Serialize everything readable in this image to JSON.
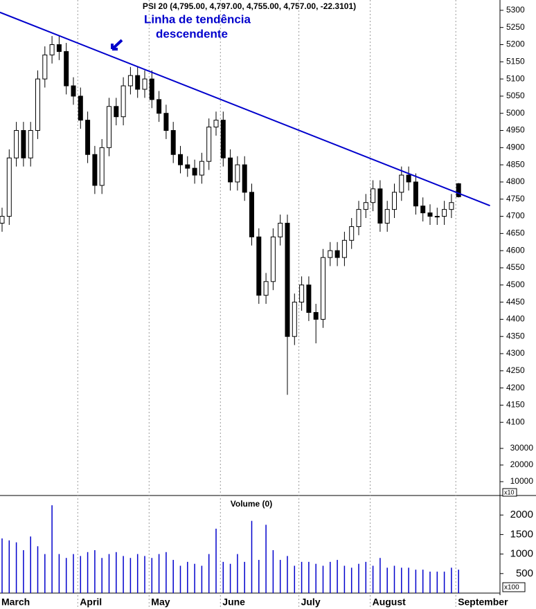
{
  "chart_data": [
    {
      "type": "candlestick",
      "title": "PSI 20 (4,795.00, 4,797.00, 4,755.00, 4,757.00, -22.3101)",
      "annotation": [
        "Linha de tendência",
        "descendente"
      ],
      "open": [
        4680,
        4700,
        4870,
        4950,
        4870,
        4950,
        5100,
        5170,
        5200,
        5180,
        5080,
        5050,
        4980,
        4880,
        4790,
        4900,
        5020,
        4990,
        5080,
        5110,
        5070,
        5100,
        5040,
        5000,
        4950,
        4880,
        4850,
        4840,
        4820,
        4860,
        4960,
        4980,
        4870,
        4800,
        4850,
        4770,
        4640,
        4470,
        4510,
        4640,
        4680,
        4350,
        4450,
        4500,
        4420,
        4400,
        4580,
        4600,
        4580,
        4630,
        4670,
        4720,
        4740,
        4780,
        4680,
        4720,
        4770,
        4820,
        4800,
        4730,
        4710,
        4700,
        4700,
        4720,
        4795
      ],
      "high": [
        4725,
        4895,
        4975,
        4975,
        4975,
        5125,
        5195,
        5225,
        5225,
        5205,
        5105,
        5075,
        5005,
        4905,
        4925,
        5045,
        5045,
        5105,
        5135,
        5135,
        5125,
        5125,
        5065,
        5025,
        4975,
        4905,
        4875,
        4865,
        4885,
        4985,
        5005,
        5005,
        4895,
        4875,
        4875,
        4795,
        4665,
        4535,
        4665,
        4705,
        4705,
        4475,
        4525,
        4525,
        4445,
        4605,
        4625,
        4625,
        4655,
        4695,
        4745,
        4765,
        4805,
        4805,
        4745,
        4795,
        4845,
        4845,
        4825,
        4755,
        4735,
        4725,
        4745,
        4765,
        4797
      ],
      "low": [
        4655,
        4675,
        4845,
        4845,
        4845,
        4925,
        5075,
        5145,
        5155,
        5055,
        5025,
        4955,
        4855,
        4765,
        4765,
        4875,
        4965,
        4965,
        5055,
        5045,
        5045,
        5015,
        4975,
        4925,
        4855,
        4825,
        4815,
        4795,
        4795,
        4835,
        4935,
        4845,
        4775,
        4775,
        4745,
        4615,
        4445,
        4445,
        4485,
        4615,
        4180,
        4325,
        4425,
        4395,
        4330,
        4375,
        4555,
        4555,
        4555,
        4605,
        4645,
        4695,
        4715,
        4655,
        4655,
        4695,
        4745,
        4775,
        4705,
        4685,
        4675,
        4675,
        4675,
        4695,
        4755
      ],
      "close": [
        4700,
        4870,
        4950,
        4870,
        4950,
        5100,
        5170,
        5200,
        5180,
        5080,
        5050,
        4980,
        4880,
        4790,
        4900,
        5020,
        4990,
        5080,
        5110,
        5070,
        5100,
        5040,
        5000,
        4950,
        4880,
        4850,
        4840,
        4820,
        4860,
        4960,
        4980,
        4870,
        4800,
        4850,
        4770,
        4640,
        4470,
        4510,
        4640,
        4680,
        4350,
        4450,
        4500,
        4420,
        4400,
        4580,
        4600,
        4580,
        4630,
        4670,
        4720,
        4740,
        4780,
        4680,
        4720,
        4770,
        4820,
        4800,
        4730,
        4710,
        4700,
        4700,
        4720,
        4740,
        4757
      ],
      "up_color": "#ffffff",
      "down_color": "#000000",
      "ylim": [
        4040,
        5330
      ],
      "yticks": [
        4100,
        4150,
        4200,
        4250,
        4300,
        4350,
        4400,
        4450,
        4500,
        4550,
        4600,
        4650,
        4700,
        4750,
        4800,
        4850,
        4900,
        4950,
        5000,
        5050,
        5100,
        5150,
        5200,
        5250,
        5300
      ],
      "y2lim": [
        2500,
        33300
      ],
      "y2ticks": [
        10000,
        20000,
        30000
      ],
      "y2_label": "x10",
      "trendline": {
        "x": [
          -0.3,
          68.4
        ],
        "y": [
          5294,
          4731
        ],
        "color": "#0000cc"
      }
    },
    {
      "type": "bar",
      "title": "Volume (0)",
      "categories": [
        "March",
        null,
        null,
        null,
        null,
        null,
        null,
        null,
        null,
        null,
        null,
        "April",
        null,
        null,
        null,
        null,
        null,
        null,
        null,
        null,
        null,
        "May",
        null,
        null,
        null,
        null,
        null,
        null,
        null,
        null,
        null,
        "June",
        null,
        null,
        null,
        null,
        null,
        null,
        null,
        null,
        null,
        null,
        "July",
        null,
        null,
        null,
        null,
        null,
        null,
        null,
        null,
        null,
        "August",
        null,
        null,
        null,
        null,
        null,
        null,
        null,
        null,
        null,
        null,
        null,
        "September"
      ],
      "values": [
        1400,
        1350,
        1300,
        1100,
        1450,
        1200,
        1000,
        2250,
        1000,
        900,
        1000,
        950,
        1050,
        1100,
        900,
        1000,
        1050,
        950,
        900,
        1000,
        950,
        900,
        1000,
        1050,
        850,
        700,
        800,
        750,
        700,
        1000,
        1650,
        800,
        750,
        1000,
        800,
        1850,
        850,
        1750,
        1100,
        850,
        950,
        700,
        800,
        800,
        750,
        700,
        800,
        850,
        700,
        650,
        750,
        800,
        700,
        900,
        650,
        700,
        650,
        650,
        600,
        600,
        550,
        550,
        550,
        650,
        600
      ],
      "color": "#0000cc",
      "ylim": [
        0,
        2500
      ],
      "yticks": [
        500,
        1000,
        1500,
        2000
      ],
      "y_label": "x100"
    }
  ]
}
